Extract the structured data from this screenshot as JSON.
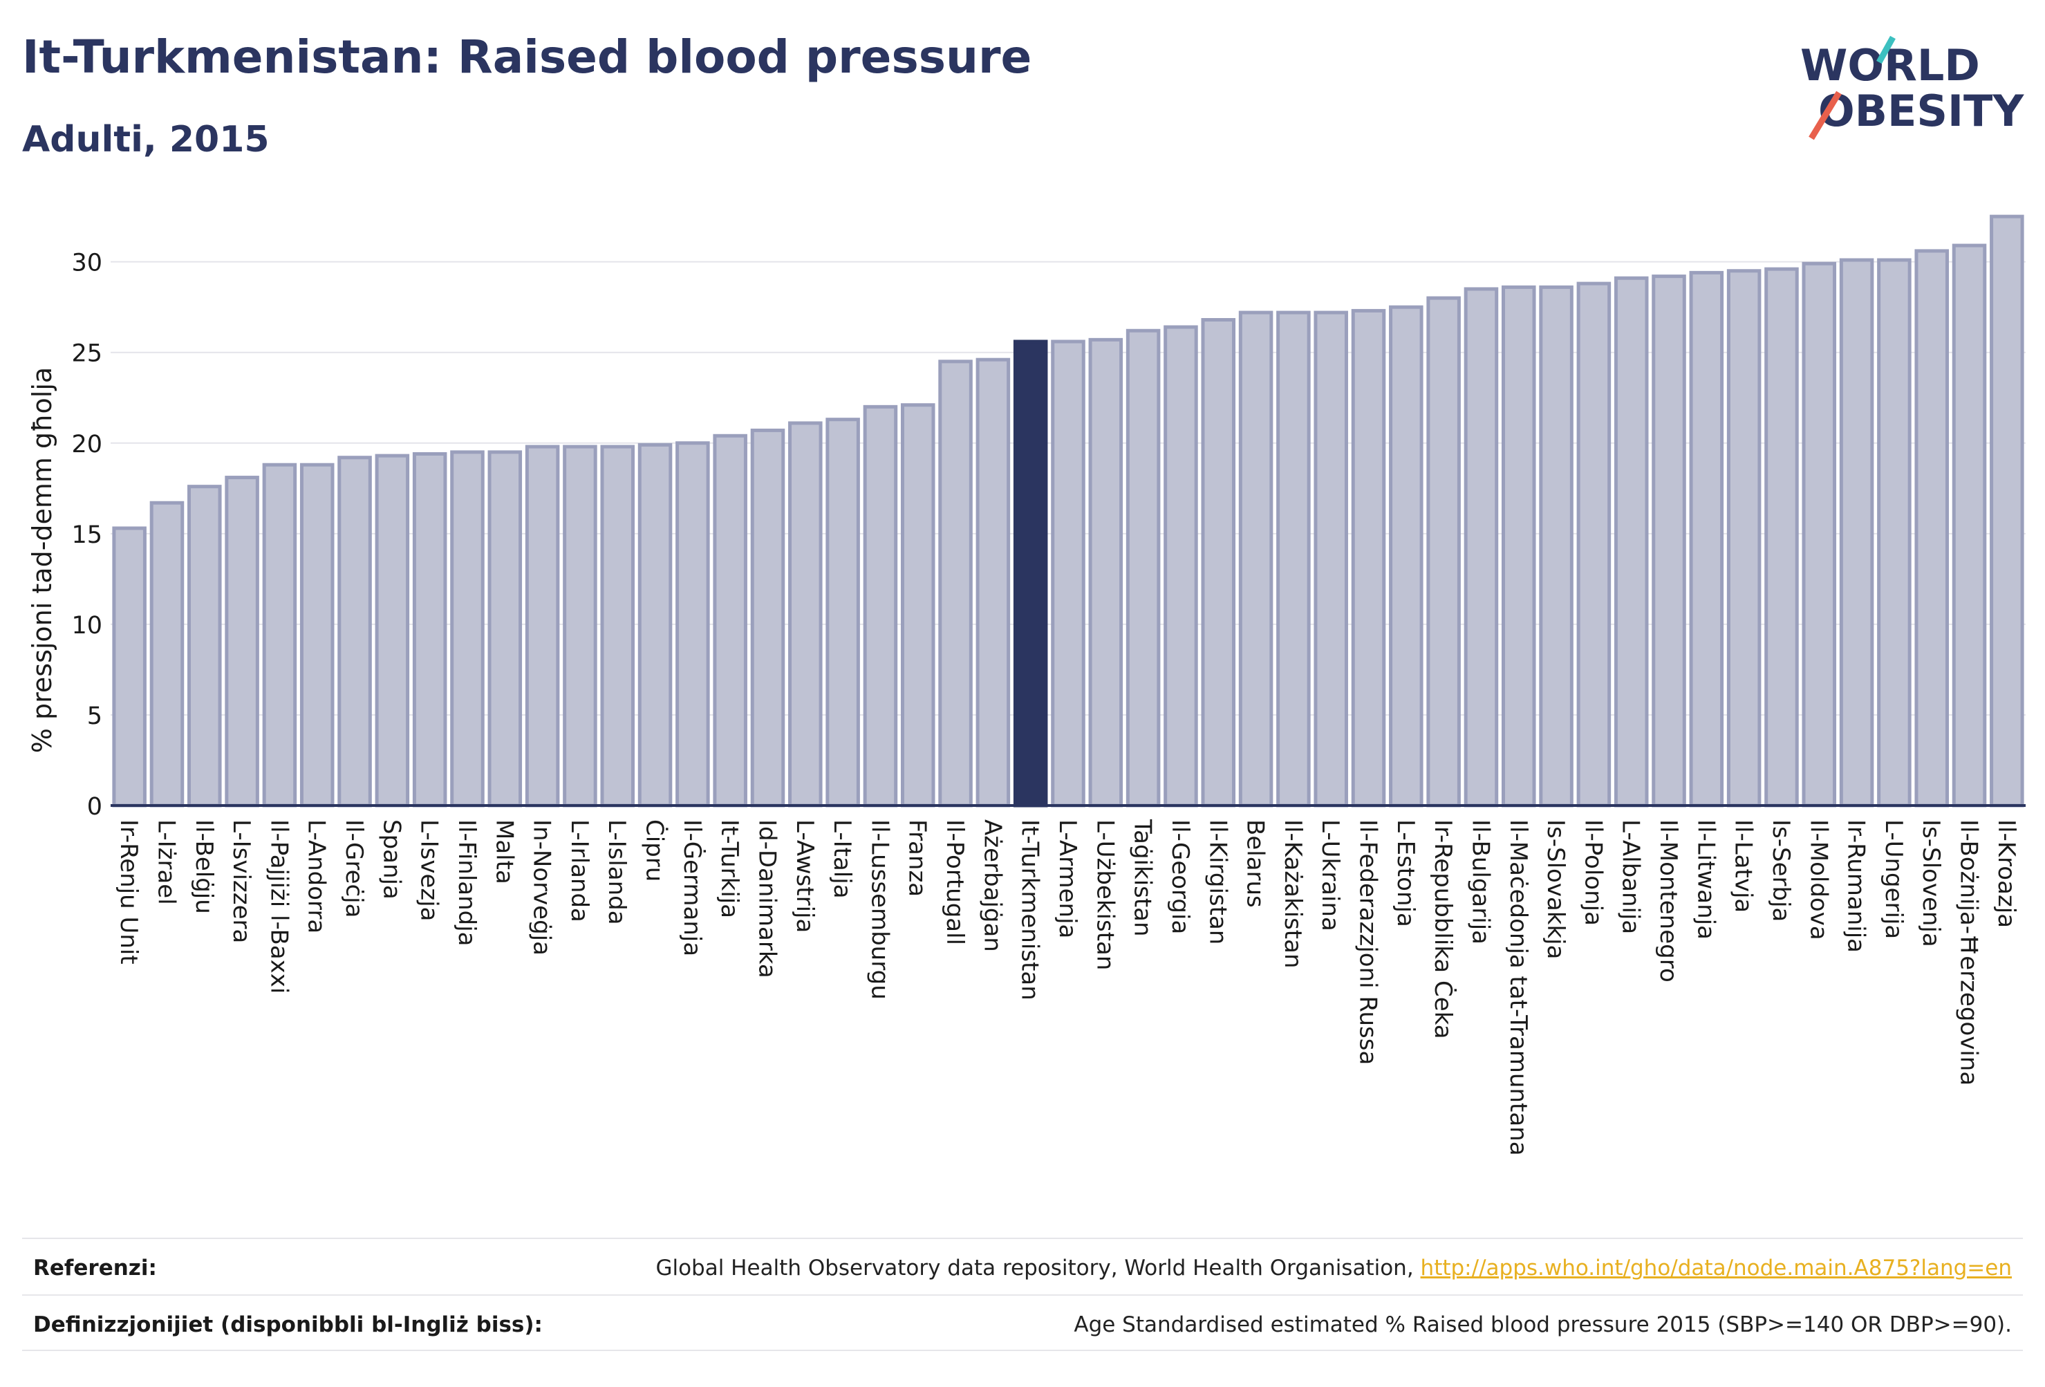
{
  "header": {
    "title": "It-Turkmenistan: Raised blood pressure",
    "subtitle": "Adulti, 2015"
  },
  "logo": {
    "line1": "WORLD",
    "line2": "OBESITY",
    "colors": {
      "text": "#2b3560",
      "teal": "#3cc0c0",
      "red": "#e8604c"
    }
  },
  "chart_data": {
    "type": "bar",
    "ylabel": "% pressjoni tad-demm għolja",
    "ylim": [
      0,
      33
    ],
    "yticks": [
      0,
      5,
      10,
      15,
      20,
      25,
      30
    ],
    "grid": true,
    "highlight": "It-Turkmenistan",
    "colors": {
      "bar": "#bfc2d3",
      "bar_edge": "#9a9fbc",
      "highlight": "#2b3560"
    },
    "categories": [
      "Ir-Renju Unit",
      "L-Iżrael",
      "Il-Belġju",
      "L-Isvizzera",
      "Il-Pajjiżi l-Baxxi",
      "L-Andorra",
      "Il-Greċja",
      "Spanja",
      "L-Isvezja",
      "Il-Finlandja",
      "Malta",
      "In-Norveġja",
      "L-Irlanda",
      "L-Islanda",
      "Ċipru",
      "Il-Ġermanja",
      "It-Turkija",
      "Id-Danimarka",
      "L-Awstrija",
      "L-Italja",
      "Il-Lussemburgu",
      "Franza",
      "Il-Portugall",
      "Ażerbajġan",
      "It-Turkmenistan",
      "L-Armenja",
      "L-Użbekistan",
      "Taġikistan",
      "Il-Georgia",
      "Il-Kirgistan",
      "Belarus",
      "Il-Każakistan",
      "L-Ukraina",
      "Il-Federazzjoni Russa",
      "L-Estonja",
      "Ir-Repubblika Ċeka",
      "Il-Bulgarija",
      "Il-Maċedonja tat-Tramuntana",
      "Is-Slovakkja",
      "Il-Polonja",
      "L-Albanija",
      "Il-Montenegro",
      "Il-Litwanja",
      "Il-Latvja",
      "Is-Serbja",
      "Il-Moldova",
      "Ir-Rumanija",
      "L-Ungerija",
      "Is-Slovenja",
      "Il-Bożnija-Ħerzegovina",
      "Il-Kroazja"
    ],
    "values": [
      15.3,
      16.7,
      17.6,
      18.1,
      18.8,
      18.8,
      19.2,
      19.3,
      19.4,
      19.5,
      19.5,
      19.8,
      19.8,
      19.8,
      19.9,
      20.0,
      20.4,
      20.7,
      21.1,
      21.3,
      22.0,
      22.1,
      24.5,
      24.6,
      25.6,
      25.6,
      25.7,
      26.2,
      26.4,
      26.8,
      27.2,
      27.2,
      27.2,
      27.3,
      27.5,
      28.0,
      28.5,
      28.6,
      28.6,
      28.8,
      29.1,
      29.2,
      29.4,
      29.5,
      29.6,
      29.9,
      30.1,
      30.1,
      30.6,
      30.9,
      32.5
    ]
  },
  "footer": {
    "references_label": "Referenzi:",
    "references_text": "Global Health Observatory data repository, World Health Organisation, ",
    "references_link": "http://apps.who.int/gho/data/node.main.A875?lang=en",
    "definitions_label": "Definizzjonijiet (disponibbli bl-Ingliż biss):",
    "definitions_text": "Age Standardised estimated % Raised blood pressure 2015 (SBP>=140 OR DBP>=90)."
  }
}
